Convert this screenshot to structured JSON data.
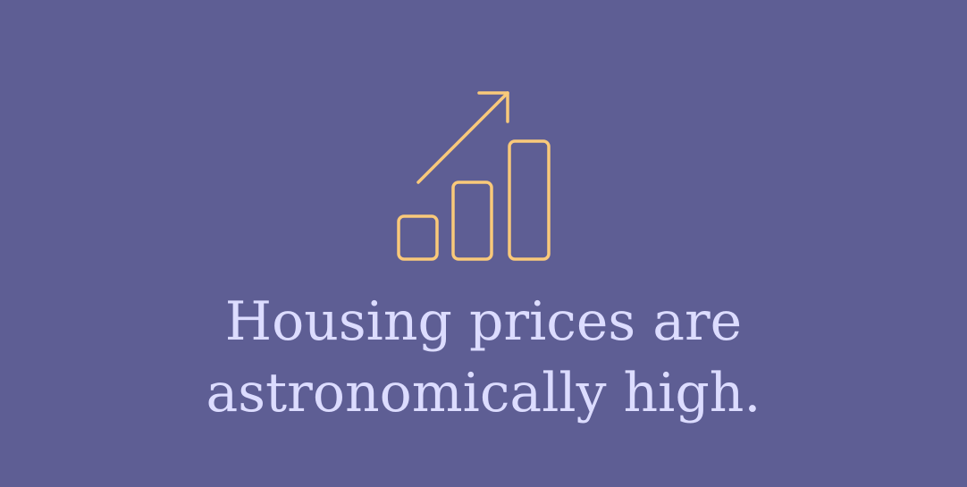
{
  "icon": "bar-chart-growth-icon",
  "colors": {
    "background": "#5e5e94",
    "icon_stroke": "#f9c97a",
    "text": "#dcdcff"
  },
  "headline": {
    "line1": "Housing prices are",
    "line2": "astronomically high."
  }
}
